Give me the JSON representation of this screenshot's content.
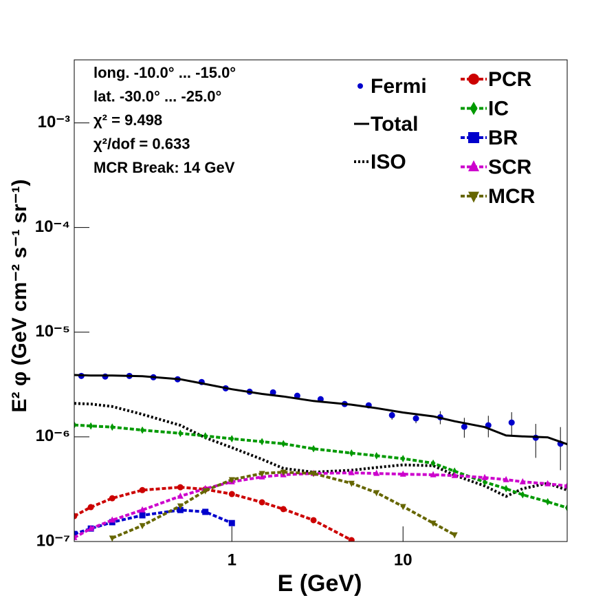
{
  "chart_data": {
    "type": "line",
    "log_x": true,
    "log_y": true,
    "xlabel": "E (GeV)",
    "ylabel": "E² φ (GeV cm⁻² s⁻¹ sr⁻¹)",
    "xlim": [
      0.12,
      91
    ],
    "ylim": [
      1e-07,
      0.004
    ],
    "xticks": [
      1,
      10
    ],
    "yticks": [
      {
        "value": 1e-07,
        "label": "10⁻⁷"
      },
      {
        "value": 1e-06,
        "label": "10⁻⁶"
      },
      {
        "value": 1e-05,
        "label": "10⁻⁵"
      },
      {
        "value": 0.0001,
        "label": "10⁻⁴"
      },
      {
        "value": 0.001,
        "label": "10⁻³"
      }
    ],
    "annotations": [
      "long. -10.0° ... -15.0°",
      "lat. -30.0° ... -25.0°",
      "χ² = 9.498",
      "χ²/dof = 0.633",
      "MCR Break: 14 GeV"
    ],
    "x": [
      0.12,
      0.15,
      0.2,
      0.3,
      0.5,
      0.7,
      1,
      1.5,
      2,
      3,
      5,
      7,
      10,
      15,
      20,
      30,
      40,
      50,
      70,
      91
    ],
    "series": [
      {
        "name": "Fermi",
        "color": "#0000cc",
        "line": "none",
        "marker": "circle",
        "x": [
          0.132,
          0.182,
          0.252,
          0.348,
          0.482,
          0.666,
          0.92,
          1.27,
          1.74,
          2.41,
          3.3,
          4.56,
          6.3,
          8.62,
          11.9,
          16.5,
          22.8,
          31.5,
          43.1,
          59.6,
          83.1
        ],
        "values": [
          3.82e-06,
          3.77e-06,
          3.82e-06,
          3.71e-06,
          3.55e-06,
          3.34e-06,
          2.91e-06,
          2.7e-06,
          2.66e-06,
          2.47e-06,
          2.29e-06,
          2.06e-06,
          2e-06,
          1.61e-06,
          1.5e-06,
          1.54e-06,
          1.25e-06,
          1.29e-06,
          1.37e-06,
          9.8e-07,
          8.6e-07
        ],
        "errors": [
          1e-07,
          1e-07,
          1e-07,
          1e-07,
          1e-07,
          1e-07,
          1e-07,
          8e-08,
          8e-08,
          8e-08,
          8e-08,
          1e-07,
          1.2e-07,
          1.5e-07,
          1.5e-07,
          2.2e-07,
          2.7e-07,
          3e-07,
          3.5e-07,
          3.5e-07,
          3.8e-07
        ]
      },
      {
        "name": "Total",
        "color": "#000000",
        "line": "solid",
        "marker": "none",
        "values": [
          3.9e-06,
          3.85e-06,
          3.85e-06,
          3.8e-06,
          3.55e-06,
          3.2e-06,
          2.85e-06,
          2.57e-06,
          2.43e-06,
          2.2e-06,
          2.03e-06,
          1.88e-06,
          1.71e-06,
          1.57e-06,
          1.41e-06,
          1.24e-06,
          1.03e-06,
          1.01e-06,
          9.9e-07,
          8.5e-07
        ]
      },
      {
        "name": "ISO",
        "color": "#000000",
        "line": "dotted",
        "marker": "none",
        "values": [
          2.09e-06,
          2.06e-06,
          1.95e-06,
          1.64e-06,
          1.29e-06,
          9.8e-07,
          7.9e-07,
          6.1e-07,
          5e-07,
          4.6e-07,
          4.8e-07,
          5.1e-07,
          5.4e-07,
          5.3e-07,
          4.3e-07,
          3.4e-07,
          2.7e-07,
          3.2e-07,
          3.6e-07,
          3.1e-07
        ]
      },
      {
        "name": "PCR",
        "color": "#cc0000",
        "line": "dashed",
        "marker": "circle",
        "values": [
          1.75e-07,
          2.13e-07,
          2.59e-07,
          3.1e-07,
          3.3e-07,
          3.15e-07,
          2.84e-07,
          2.37e-07,
          2.04e-07,
          1.6e-07,
          1.03e-07,
          null,
          null,
          null,
          null,
          null,
          null,
          null,
          null,
          null
        ]
      },
      {
        "name": "IC",
        "color": "#009900",
        "line": "dashed",
        "marker": "diamond",
        "values": [
          1.3e-06,
          1.27e-06,
          1.24e-06,
          1.16e-06,
          1.08e-06,
          1.02e-06,
          9.6e-07,
          9e-07,
          8.6e-07,
          7.7e-07,
          7e-07,
          6.6e-07,
          6.2e-07,
          5.6e-07,
          4.7e-07,
          3.7e-07,
          3.2e-07,
          2.8e-07,
          2.4e-07,
          2.1e-07
        ]
      },
      {
        "name": "BR",
        "color": "#0000cc",
        "line": "dashed",
        "marker": "square",
        "values": [
          1.18e-07,
          1.33e-07,
          1.53e-07,
          1.78e-07,
          2e-07,
          1.92e-07,
          1.5e-07,
          null,
          null,
          null,
          null,
          null,
          null,
          null,
          null,
          null,
          null,
          null,
          null,
          null
        ]
      },
      {
        "name": "SCR",
        "color": "#cc00cc",
        "line": "dashed",
        "marker": "triangle-up",
        "values": [
          1.09e-07,
          1.33e-07,
          1.6e-07,
          2e-07,
          2.71e-07,
          3.2e-07,
          3.72e-07,
          4.14e-07,
          4.34e-07,
          4.47e-07,
          4.54e-07,
          4.47e-07,
          4.4e-07,
          4.34e-07,
          4.27e-07,
          4.08e-07,
          3.9e-07,
          3.72e-07,
          3.56e-07,
          3.4e-07
        ]
      },
      {
        "name": "MCR",
        "color": "#666600",
        "line": "dashed",
        "marker": "triangle-down",
        "values": [
          null,
          null,
          1.08e-07,
          1.42e-07,
          2.19e-07,
          3.06e-07,
          3.9e-07,
          4.47e-07,
          4.6e-07,
          4.47e-07,
          3.6e-07,
          2.93e-07,
          2.16e-07,
          1.5e-07,
          1.16e-07,
          null,
          null,
          null,
          null,
          null
        ]
      }
    ]
  }
}
